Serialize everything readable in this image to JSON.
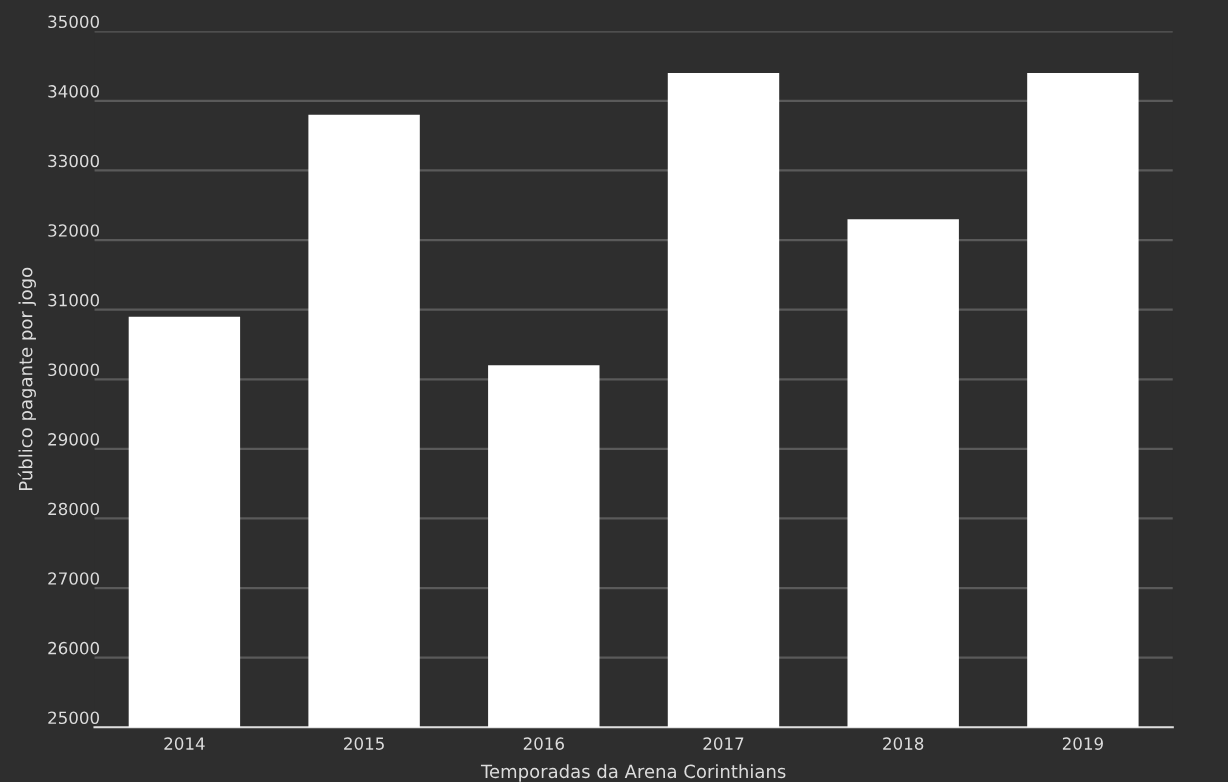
{
  "chart_data": {
    "type": "bar",
    "xlabel": "Temporadas da Arena Corinthians",
    "ylabel": "Público pagante por jogo",
    "categories": [
      "2014",
      "2015",
      "2016",
      "2017",
      "2018",
      "2019"
    ],
    "values": [
      30900,
      33800,
      30200,
      34400,
      32300,
      34400
    ],
    "color": "#ffffff",
    "ylim": [
      25000,
      35000
    ],
    "yticks": [
      25000,
      26000,
      27000,
      28000,
      29000,
      30000,
      31000,
      32000,
      33000,
      34000,
      35000
    ],
    "grid": "y"
  }
}
